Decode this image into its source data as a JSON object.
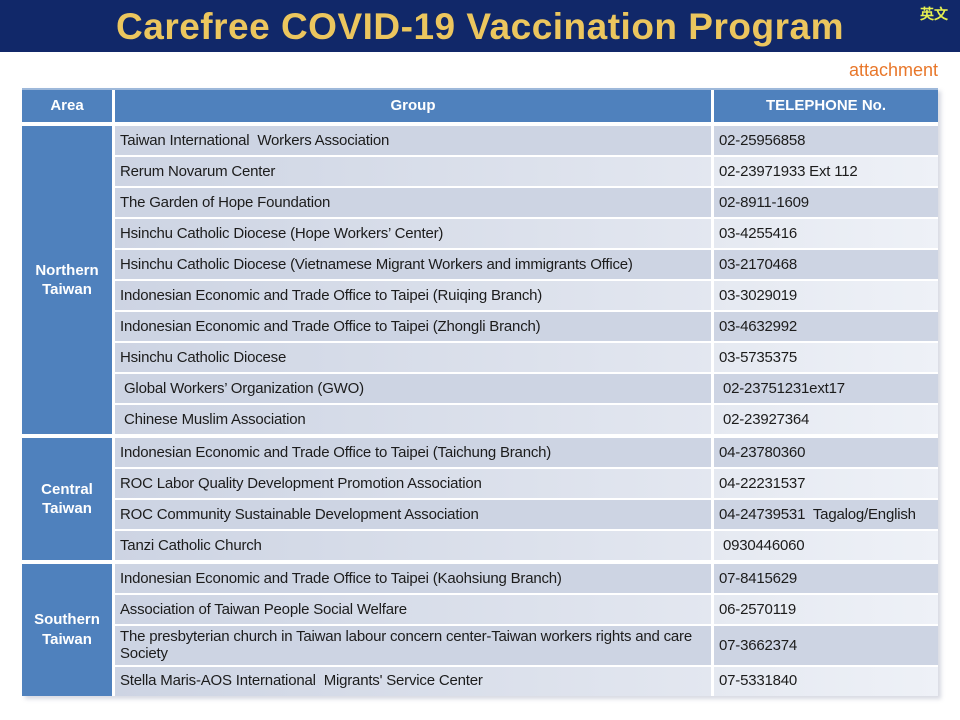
{
  "header": {
    "title": "Carefree COVID-19 Vaccination Program",
    "lang_link": "英文",
    "attachment_label": "attachment"
  },
  "table": {
    "columns": [
      "Area",
      "Group",
      "TELEPHONE No."
    ],
    "sections": [
      {
        "area": "Northern Taiwan",
        "rows": [
          {
            "group": "Taiwan International  Workers Association",
            "phone": "02-25956858"
          },
          {
            "group": "Rerum Novarum Center",
            "phone": "02-23971933 Ext 112"
          },
          {
            "group": "The Garden of Hope Foundation",
            "phone": "02-8911-1609"
          },
          {
            "group": "Hsinchu Catholic Diocese (Hope Workers’ Center)",
            "phone": "03-4255416"
          },
          {
            "group": "Hsinchu Catholic Diocese (Vietnamese Migrant Workers and immigrants Office)",
            "phone": "03-2170468"
          },
          {
            "group": "Indonesian Economic and Trade Office to Taipei (Ruiqing Branch)",
            "phone": "03-3029019"
          },
          {
            "group": "Indonesian Economic and Trade Office to Taipei (Zhongli Branch)",
            "phone": "03-4632992"
          },
          {
            "group": "Hsinchu Catholic Diocese",
            "phone": "03-5735375"
          },
          {
            "group": " Global Workers’ Organization (GWO)",
            "phone": " 02-23751231ext17"
          },
          {
            "group": " Chinese Muslim Association",
            "phone": " 02-23927364"
          }
        ]
      },
      {
        "area": "Central Taiwan",
        "rows": [
          {
            "group": "Indonesian Economic and Trade Office to Taipei (Taichung Branch)",
            "phone": "04-23780360"
          },
          {
            "group": "ROC Labor Quality Development Promotion Association",
            "phone": "04-22231537"
          },
          {
            "group": "ROC Community Sustainable Development Association",
            "phone": "04-24739531  Tagalog/English"
          },
          {
            "group": "Tanzi Catholic Church",
            "phone": " 0930446060"
          }
        ]
      },
      {
        "area": "Southern Taiwan",
        "rows": [
          {
            "group": "Indonesian Economic and Trade Office to Taipei (Kaohsiung Branch)",
            "phone": "07-8415629"
          },
          {
            "group": "Association of Taiwan People Social Welfare",
            "phone": "06-2570119"
          },
          {
            "group": "The presbyterian church in Taiwan labour concern center-Taiwan workers rights and care Society",
            "phone": "07-3662374"
          },
          {
            "group": "Stella Maris-AOS International  Migrants' Service Center",
            "phone": "07-5331840"
          }
        ]
      }
    ]
  },
  "colors": {
    "navy": "#112869",
    "gold": "#ECC65E",
    "lang-yellow": "#E6F050",
    "orange": "#E8772A",
    "header-blue": "#4F81BD",
    "row-dark": "#CDD4E3",
    "row-light": "#EEF1F7",
    "ink": "#1c1c1c"
  }
}
